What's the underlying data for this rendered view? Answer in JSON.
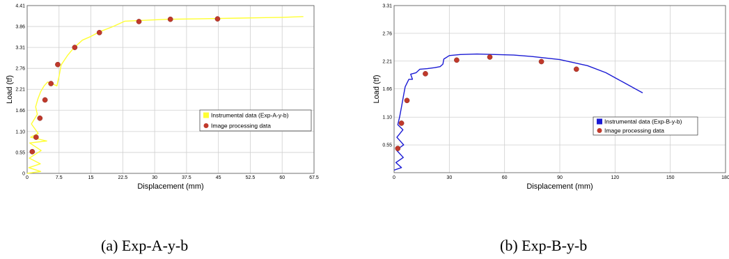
{
  "captions": {
    "a": "(a) Exp-A-y-b",
    "b": "(b) Exp-B-y-b"
  },
  "chart_data": [
    {
      "type": "line",
      "title": "",
      "xlabel": "Displacement (mm)",
      "ylabel": "Load (tf)",
      "xlim": [
        0,
        67.5
      ],
      "ylim": [
        0,
        4.41
      ],
      "x_ticks": [
        "0",
        "7.5",
        "15",
        "22.5",
        "30",
        "37.5",
        "45",
        "52.5",
        "60",
        "67.5"
      ],
      "y_ticks": [
        "0",
        "0.55",
        "1.10",
        "1.66",
        "2.21",
        "2.76",
        "3.31",
        "3.86",
        "4.41"
      ],
      "grid": true,
      "legend_position": "right",
      "colors": {
        "instrumental": "#ffff33",
        "image": "#c0392b"
      },
      "series": [
        {
          "name": "Instrumental data (Exp-A-y-b)",
          "type": "line",
          "x": [
            0,
            3.2,
            0.4,
            3.1,
            0.5,
            3.3,
            0.6,
            4.6,
            0.8,
            2.6,
            1.0,
            2.4,
            2.0,
            2.5,
            3.2,
            4.0,
            4.8,
            6.0,
            7.0,
            7.5,
            8.0,
            9.5,
            11,
            13,
            15,
            17,
            20,
            23,
            27,
            33,
            40,
            50,
            60,
            65
          ],
          "y": [
            0,
            0.05,
            0.15,
            0.25,
            0.4,
            0.6,
            0.8,
            0.85,
            0.95,
            1.05,
            1.3,
            1.55,
            1.75,
            1.95,
            2.15,
            2.3,
            2.4,
            2.35,
            2.3,
            2.55,
            2.85,
            3.1,
            3.3,
            3.5,
            3.6,
            3.72,
            3.85,
            4.0,
            4.02,
            4.05,
            4.06,
            4.08,
            4.1,
            4.12
          ]
        },
        {
          "name": "Image processing data",
          "type": "scatter",
          "x": [
            1.2,
            2.1,
            3.0,
            4.2,
            5.6,
            7.2,
            11.2,
            17.0,
            26.3,
            33.7,
            44.8
          ],
          "y": [
            0.57,
            0.95,
            1.45,
            1.93,
            2.36,
            2.86,
            3.31,
            3.7,
            3.99,
            4.05,
            4.06
          ]
        }
      ]
    },
    {
      "type": "line",
      "title": "",
      "xlabel": "Displacement (mm)",
      "ylabel": "Load (tf)",
      "xlim": [
        0,
        180
      ],
      "ylim": [
        0,
        3.31
      ],
      "x_ticks": [
        "0",
        "30",
        "60",
        "90",
        "120",
        "150",
        "180"
      ],
      "y_ticks": [
        "0.55",
        "1.10",
        "1.66",
        "2.21",
        "2.76",
        "3.31"
      ],
      "grid": true,
      "legend_position": "center-left",
      "colors": {
        "instrumental": "#1a1ad4",
        "image": "#c0392b"
      },
      "series": [
        {
          "name": "Instrumental data (Exp-B-y-b)",
          "type": "line",
          "x": [
            0,
            4,
            1,
            5,
            1.2,
            5.2,
            1.5,
            4.8,
            2.0,
            3.0,
            4.0,
            5.0,
            6.0,
            8.0,
            10.0,
            9.0,
            12.0,
            14.0,
            18.0,
            22.0,
            25.0,
            26.5,
            27.0,
            30.0,
            36.0,
            45.0,
            55.0,
            65.0,
            75.0,
            90.0,
            105.0,
            115.0,
            125.0,
            135.0
          ],
          "y": [
            0.05,
            0.1,
            0.2,
            0.3,
            0.45,
            0.55,
            0.7,
            0.85,
            0.95,
            1.1,
            1.3,
            1.5,
            1.7,
            1.85,
            1.85,
            1.95,
            1.98,
            2.05,
            2.06,
            2.08,
            2.1,
            2.15,
            2.25,
            2.32,
            2.34,
            2.35,
            2.34,
            2.33,
            2.3,
            2.24,
            2.12,
            1.98,
            1.78,
            1.58
          ]
        },
        {
          "name": "Image processing data",
          "type": "scatter",
          "x": [
            2.0,
            4.0,
            7.0,
            17.0,
            34.0,
            52.0,
            80.0,
            99.0
          ],
          "y": [
            0.48,
            0.98,
            1.43,
            1.96,
            2.23,
            2.29,
            2.2,
            2.05
          ]
        }
      ]
    }
  ]
}
